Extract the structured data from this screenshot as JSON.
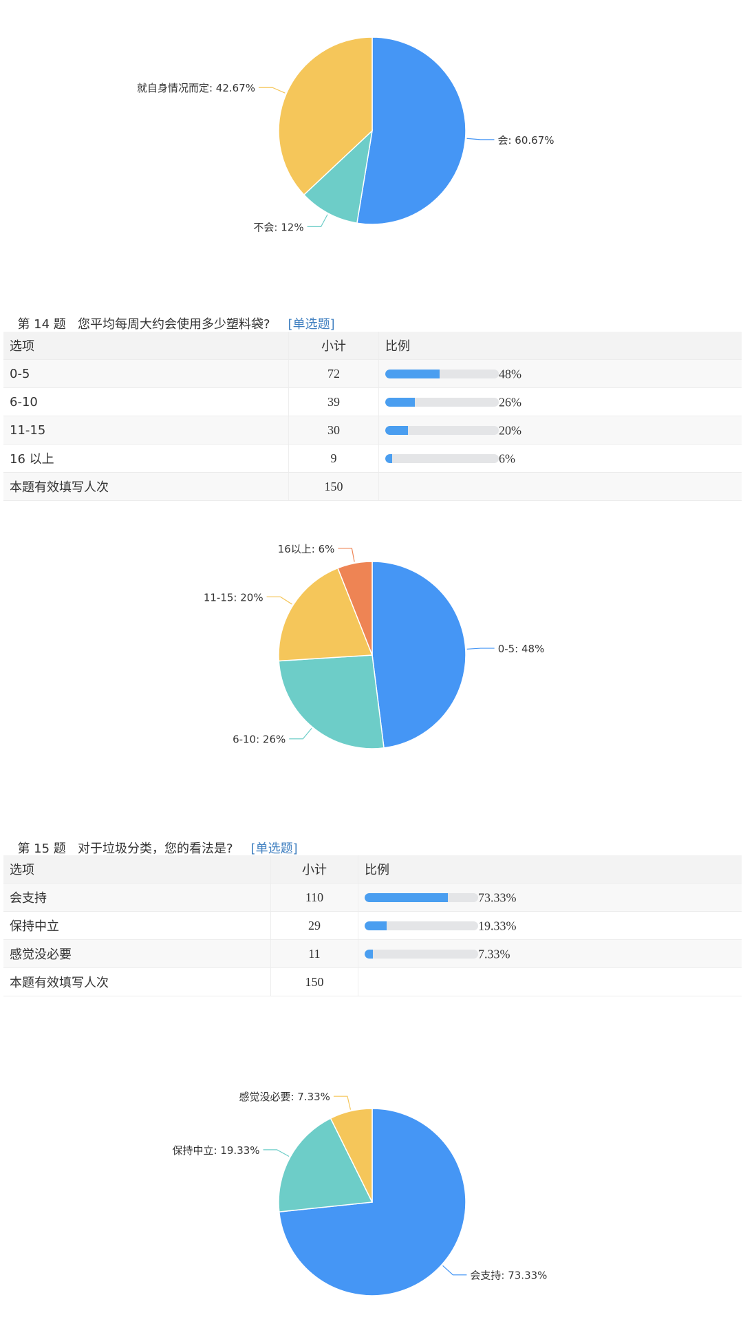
{
  "chart_data": [
    {
      "type": "pie",
      "slices": [
        {
          "label": "会",
          "value": 60.67,
          "text": "会: 60.67%",
          "color": "#4596f5"
        },
        {
          "label": "不会",
          "value": 12,
          "text": "不会: 12%",
          "color": "#6dcdc8"
        },
        {
          "label": "就自身情况而定",
          "value": 42.67,
          "text": "就自身情况而定: 42.67%",
          "color": "#f5c65a"
        }
      ]
    },
    {
      "type": "pie",
      "slices": [
        {
          "label": "0-5",
          "value": 48,
          "text": "0-5: 48%",
          "color": "#4596f5"
        },
        {
          "label": "6-10",
          "value": 26,
          "text": "6-10: 26%",
          "color": "#6dcdc8"
        },
        {
          "label": "11-15",
          "value": 20,
          "text": "11-15: 20%",
          "color": "#f5c65a"
        },
        {
          "label": "16以上",
          "value": 6,
          "text": "16以上: 6%",
          "color": "#ee8454"
        }
      ]
    },
    {
      "type": "pie",
      "slices": [
        {
          "label": "会支持",
          "value": 73.33,
          "text": "会支持: 73.33%",
          "color": "#4596f5"
        },
        {
          "label": "保持中立",
          "value": 19.33,
          "text": "保持中立: 19.33%",
          "color": "#6dcdc8"
        },
        {
          "label": "感觉没必要",
          "value": 7.33,
          "text": "感觉没必要: 7.33%",
          "color": "#f5c65a"
        }
      ]
    }
  ],
  "q14": {
    "number": "第 14 题",
    "question": "您平均每周大约会使用多少塑料袋?",
    "type": "[单选题]",
    "headers": [
      "选项",
      "小计",
      "比例"
    ],
    "rows": [
      {
        "option": "0-5",
        "count": "72",
        "pct": "48%",
        "value": 48
      },
      {
        "option": "6-10",
        "count": "39",
        "pct": "26%",
        "value": 26
      },
      {
        "option": "11-15",
        "count": "30",
        "pct": "20%",
        "value": 20
      },
      {
        "option": "16 以上",
        "count": "9",
        "pct": "6%",
        "value": 6
      }
    ],
    "total_label": "本题有效填写人次",
    "total": "150"
  },
  "q15": {
    "number": "第 15 题",
    "question": "对于垃圾分类，您的看法是?",
    "type": "[单选题]",
    "headers": [
      "选项",
      "小计",
      "比例"
    ],
    "rows": [
      {
        "option": "会支持",
        "count": "110",
        "pct": "73.33%",
        "value": 73.33
      },
      {
        "option": "保持中立",
        "count": "29",
        "pct": "19.33%",
        "value": 19.33
      },
      {
        "option": "感觉没必要",
        "count": "11",
        "pct": "7.33%",
        "value": 7.33
      }
    ],
    "total_label": "本题有效填写人次",
    "total": "150"
  }
}
